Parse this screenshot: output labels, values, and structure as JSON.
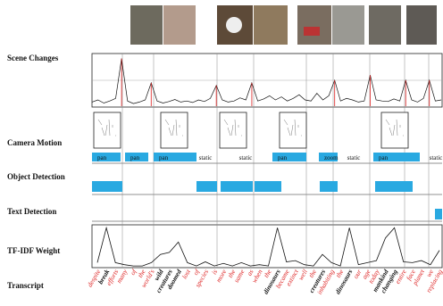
{
  "labels": {
    "scene_changes": "Scene Changes",
    "camera_motion": "Camera Motion",
    "object_detection": "Object Detection",
    "text_detection": "Text Detection",
    "tfidf_weight": "TF-IDF Weight",
    "transcript": "Transcript"
  },
  "scene_changes": {
    "values": [
      0.08,
      0.12,
      0.06,
      0.1,
      0.15,
      0.92,
      0.1,
      0.05,
      0.08,
      0.12,
      0.45,
      0.1,
      0.06,
      0.09,
      0.13,
      0.08,
      0.1,
      0.07,
      0.12,
      0.09,
      0.15,
      0.4,
      0.12,
      0.08,
      0.1,
      0.16,
      0.12,
      0.45,
      0.1,
      0.14,
      0.2,
      0.12,
      0.18,
      0.1,
      0.15,
      0.22,
      0.12,
      0.1,
      0.25,
      0.12,
      0.2,
      0.5,
      0.1,
      0.15,
      0.12,
      0.08,
      0.1,
      0.6,
      0.12,
      0.1,
      0.09,
      0.14,
      0.1,
      0.5,
      0.12,
      0.08,
      0.15,
      0.5,
      0.1,
      0.12
    ]
  },
  "camera_motion": [
    "pan",
    "pan",
    "pan",
    "static",
    "static",
    "pan",
    "zoom",
    "static",
    "pan",
    "static"
  ],
  "transcript": {
    "words": [
      {
        "text": "despite",
        "style": "red"
      },
      {
        "text": "break",
        "style": "bold"
      },
      {
        "text": "efforts",
        "style": "red"
      },
      {
        "text": "many",
        "style": "red"
      },
      {
        "text": "of",
        "style": "red"
      },
      {
        "text": "the",
        "style": "red"
      },
      {
        "text": "world's",
        "style": "red"
      },
      {
        "text": "wild",
        "style": "bold"
      },
      {
        "text": "creatures",
        "style": "bold"
      },
      {
        "text": "doomed",
        "style": "bold"
      },
      {
        "text": "lost",
        "style": "red"
      },
      {
        "text": "of",
        "style": "red"
      },
      {
        "text": "species",
        "style": "red"
      },
      {
        "text": "is",
        "style": "red"
      },
      {
        "text": "more",
        "style": "red"
      },
      {
        "text": "the",
        "style": "red"
      },
      {
        "text": "same",
        "style": "red"
      },
      {
        "text": "as",
        "style": "red"
      },
      {
        "text": "when",
        "style": "red"
      },
      {
        "text": "the",
        "style": "red"
      },
      {
        "text": "dinosaurs",
        "style": "bold"
      },
      {
        "text": "became",
        "style": "red"
      },
      {
        "text": "extinct",
        "style": "red"
      },
      {
        "text": "well",
        "style": "red"
      },
      {
        "text": "the",
        "style": "red"
      },
      {
        "text": "creatures",
        "style": "bold"
      },
      {
        "text": "inhabiting",
        "style": "red"
      },
      {
        "text": "the",
        "style": "red"
      },
      {
        "text": "dinosaurs",
        "style": "bold"
      },
      {
        "text": "our",
        "style": "red"
      },
      {
        "text": "age",
        "style": "red"
      },
      {
        "text": "today",
        "style": "red"
      },
      {
        "text": "mankind",
        "style": "bold"
      },
      {
        "text": "changing",
        "style": "bold"
      },
      {
        "text": "entire",
        "style": "red"
      },
      {
        "text": "face",
        "style": "red"
      },
      {
        "text": "planet",
        "style": "red"
      },
      {
        "text": "we",
        "style": "red"
      },
      {
        "text": "replacing",
        "style": "red"
      }
    ]
  },
  "tfidf_weight": {
    "values": [
      0.1,
      0.95,
      0.1,
      0.05,
      0.02,
      0.02,
      0.1,
      0.3,
      0.35,
      0.6,
      0.1,
      0.02,
      0.12,
      0.02,
      0.08,
      0.02,
      0.1,
      0.02,
      0.05,
      0.02,
      0.95,
      0.12,
      0.15,
      0.05,
      0.02,
      0.3,
      0.1,
      0.02,
      0.95,
      0.05,
      0.1,
      0.15,
      0.7,
      0.95,
      0.12,
      0.1,
      0.15,
      0.05,
      0.4
    ]
  }
}
